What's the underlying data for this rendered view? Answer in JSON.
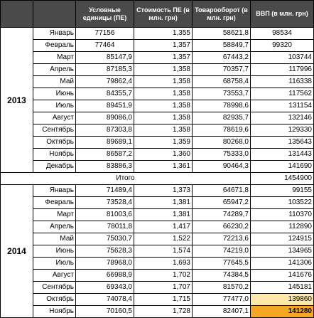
{
  "headers": {
    "year": "",
    "month": "",
    "units": "Условные единицы (ПЕ)",
    "cost": "Стоимость ПЕ (в млн. грн)",
    "trade": "Товарооборот (в млн. грн)",
    "gdp": "ВВП (в млн. грн)"
  },
  "year2013": {
    "label": "2013",
    "rows": [
      {
        "month": "Январь",
        "units": "77156",
        "cost": "1,355",
        "trade": "58621,8",
        "gdp": "98534"
      },
      {
        "month": "Февраль",
        "units": "77464",
        "cost": "1,357",
        "trade": "58849,7",
        "gdp": "99320"
      },
      {
        "month": "Март",
        "units": "85147,9",
        "cost": "1,357",
        "trade": "67443,2",
        "gdp": "103744"
      },
      {
        "month": "Апрель",
        "units": "87185,3",
        "cost": "1,358",
        "trade": "70357,7",
        "gdp": "117996"
      },
      {
        "month": "Май",
        "units": "79862,4",
        "cost": "1,358",
        "trade": "68758,4",
        "gdp": "116338"
      },
      {
        "month": "Июнь",
        "units": "84355,7",
        "cost": "1,358",
        "trade": "73553,7",
        "gdp": "117562"
      },
      {
        "month": "Июль",
        "units": "89451,9",
        "cost": "1,358",
        "trade": "78998,6",
        "gdp": "131154"
      },
      {
        "month": "Август",
        "units": "89086,0",
        "cost": "1,358",
        "trade": "82935,7",
        "gdp": "132146"
      },
      {
        "month": "Сентябрь",
        "units": "87303,8",
        "cost": "1,358",
        "trade": "78619,6",
        "gdp": "129330"
      },
      {
        "month": "Октябрь",
        "units": "89689,1",
        "cost": "1,359",
        "trade": "80268,0",
        "gdp": "135643"
      },
      {
        "month": "Ноябрь",
        "units": "86587,2",
        "cost": "1,360",
        "trade": "75333,0",
        "gdp": "131443"
      },
      {
        "month": "Декабрь",
        "units": "83886,3",
        "cost": "1,361",
        "trade": "90464,3",
        "gdp": "141690"
      }
    ]
  },
  "total": {
    "label": "Итого",
    "gdp": "1454900"
  },
  "year2014": {
    "label": "2014",
    "rows": [
      {
        "month": "Январь",
        "units": "71489,4",
        "cost": "1,373",
        "trade": "64671,8",
        "gdp": "99155"
      },
      {
        "month": "Февраль",
        "units": "73528,4",
        "cost": "1,381",
        "trade": "65947,2",
        "gdp": "103522"
      },
      {
        "month": "Март",
        "units": "81003,6",
        "cost": "1,381",
        "trade": "74289,7",
        "gdp": "110370"
      },
      {
        "month": "Апрель",
        "units": "78011,8",
        "cost": "1,417",
        "trade": "66230,2",
        "gdp": "112890"
      },
      {
        "month": "Май",
        "units": "75030,7",
        "cost": "1,522",
        "trade": "72213,6",
        "gdp": "124915"
      },
      {
        "month": "Июнь",
        "units": "75628,3",
        "cost": "1,574",
        "trade": "74219,0",
        "gdp": "134965"
      },
      {
        "month": "Июль",
        "units": "78968,0",
        "cost": "1,693",
        "trade": "77645,5",
        "gdp": "141306"
      },
      {
        "month": "Август",
        "units": "66988,9",
        "cost": "1,702",
        "trade": "74384,5",
        "gdp": "141676"
      },
      {
        "month": "Сентябрь",
        "units": "69343,0",
        "cost": "1,707",
        "trade": "81570,2",
        "gdp": "145181"
      },
      {
        "month": "Октябрь",
        "units": "74078,4",
        "cost": "1,715",
        "trade": "77477,0",
        "gdp": "139860"
      },
      {
        "month": "Ноябрь",
        "units": "70160,5",
        "cost": "1,728",
        "trade": "82407,1",
        "gdp": "141280"
      }
    ]
  },
  "colors": {
    "header_bg": "#4a4a4a",
    "header_text": "#ffffff",
    "highlight_light": "#ffe9a8",
    "highlight_strong": "#f5a623"
  }
}
